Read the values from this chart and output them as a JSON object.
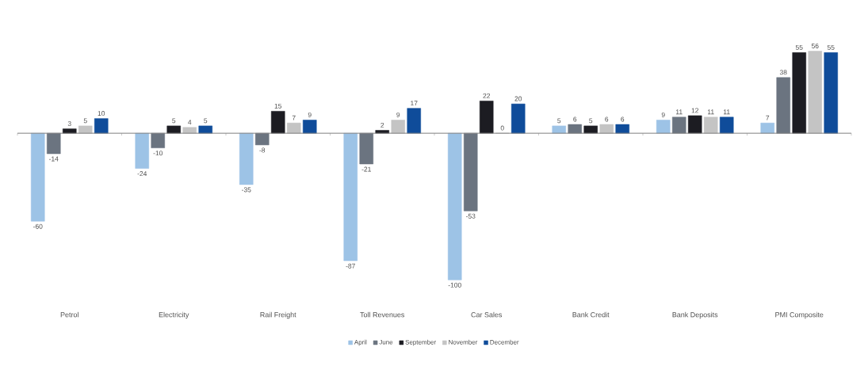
{
  "chart_data": {
    "type": "bar",
    "data_labels": true,
    "legend": "bottom",
    "categories": [
      "Petrol",
      "Electricity",
      "Rail Freight",
      "Toll Revenues",
      "Car Sales",
      "Bank Credit",
      "Bank Deposits",
      "PMI Composite"
    ],
    "series": [
      {
        "name": "April",
        "color": "#9dc3e6",
        "values": [
          -60,
          -24,
          -35,
          -87,
          -100,
          5,
          9,
          7
        ]
      },
      {
        "name": "June",
        "color": "#6b7480",
        "values": [
          -14,
          -10,
          -8,
          -21,
          -53,
          6,
          11,
          38
        ]
      },
      {
        "name": "September",
        "color": "#1c1c22",
        "values": [
          3,
          5,
          15,
          2,
          22,
          5,
          12,
          55
        ]
      },
      {
        "name": "November",
        "color": "#c4c4c4",
        "values": [
          5,
          4,
          7,
          9,
          0,
          6,
          11,
          56
        ]
      },
      {
        "name": "December",
        "color": "#0f4c9a",
        "values": [
          10,
          5,
          9,
          17,
          20,
          6,
          11,
          55
        ]
      }
    ]
  }
}
